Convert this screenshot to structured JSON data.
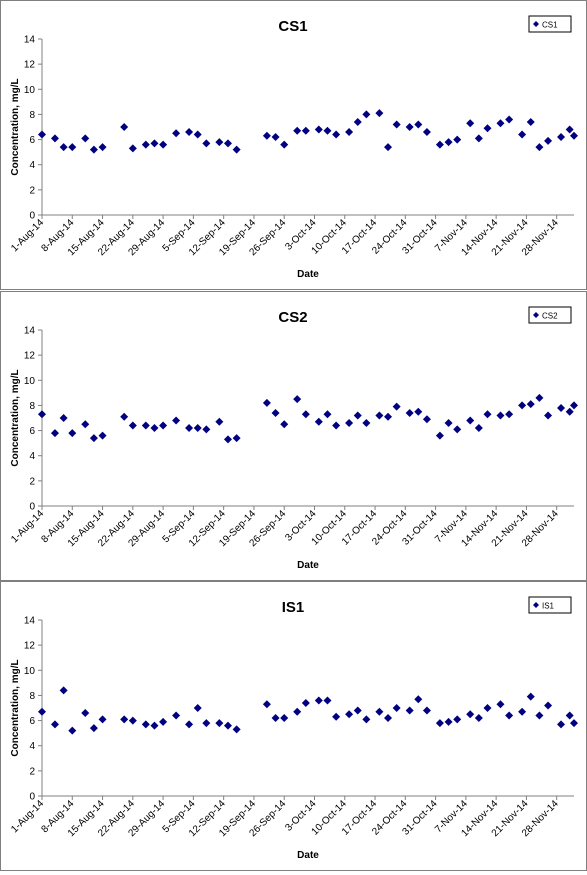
{
  "chart_data": [
    {
      "type": "scatter",
      "title": "CS1",
      "xlabel": "Date",
      "ylabel": "Concentration, mg/L",
      "ylim": [
        0,
        14
      ],
      "yticks": [
        0,
        2,
        4,
        6,
        8,
        10,
        12,
        14
      ],
      "xlim": [
        "1-Aug-14",
        "2-Dec-14"
      ],
      "xtick_labels": [
        "1-Aug-14",
        "8-Aug-14",
        "15-Aug-14",
        "22-Aug-14",
        "29-Aug-14",
        "5-Sep-14",
        "12-Sep-14",
        "19-Sep-14",
        "26-Sep-14",
        "3-Oct-14",
        "10-Oct-14",
        "17-Oct-14",
        "24-Oct-14",
        "31-Oct-14",
        "7-Nov-14",
        "14-Nov-14",
        "21-Nov-14",
        "28-Nov-14"
      ],
      "legend_position": "top-right",
      "grid": false,
      "marker_color": "#000080",
      "series": [
        {
          "name": "CS1",
          "points": [
            {
              "x": "1-Aug-14",
              "y": 6.4
            },
            {
              "x": "4-Aug-14",
              "y": 6.1
            },
            {
              "x": "6-Aug-14",
              "y": 5.4
            },
            {
              "x": "8-Aug-14",
              "y": 5.4
            },
            {
              "x": "11-Aug-14",
              "y": 6.1
            },
            {
              "x": "13-Aug-14",
              "y": 5.2
            },
            {
              "x": "15-Aug-14",
              "y": 5.4
            },
            {
              "x": "20-Aug-14",
              "y": 7.0
            },
            {
              "x": "22-Aug-14",
              "y": 5.3
            },
            {
              "x": "25-Aug-14",
              "y": 5.6
            },
            {
              "x": "27-Aug-14",
              "y": 5.7
            },
            {
              "x": "29-Aug-14",
              "y": 5.6
            },
            {
              "x": "1-Sep-14",
              "y": 6.5
            },
            {
              "x": "4-Sep-14",
              "y": 6.6
            },
            {
              "x": "6-Sep-14",
              "y": 6.4
            },
            {
              "x": "8-Sep-14",
              "y": 5.7
            },
            {
              "x": "11-Sep-14",
              "y": 5.8
            },
            {
              "x": "13-Sep-14",
              "y": 5.7
            },
            {
              "x": "15-Sep-14",
              "y": 5.2
            },
            {
              "x": "22-Sep-14",
              "y": 6.3
            },
            {
              "x": "24-Sep-14",
              "y": 6.2
            },
            {
              "x": "26-Sep-14",
              "y": 5.6
            },
            {
              "x": "29-Sep-14",
              "y": 6.7
            },
            {
              "x": "1-Oct-14",
              "y": 6.7
            },
            {
              "x": "4-Oct-14",
              "y": 6.8
            },
            {
              "x": "6-Oct-14",
              "y": 6.7
            },
            {
              "x": "8-Oct-14",
              "y": 6.4
            },
            {
              "x": "11-Oct-14",
              "y": 6.6
            },
            {
              "x": "13-Oct-14",
              "y": 7.4
            },
            {
              "x": "15-Oct-14",
              "y": 8.0
            },
            {
              "x": "18-Oct-14",
              "y": 8.1
            },
            {
              "x": "20-Oct-14",
              "y": 5.4
            },
            {
              "x": "22-Oct-14",
              "y": 7.2
            },
            {
              "x": "25-Oct-14",
              "y": 7.0
            },
            {
              "x": "27-Oct-14",
              "y": 7.2
            },
            {
              "x": "29-Oct-14",
              "y": 6.6
            },
            {
              "x": "1-Nov-14",
              "y": 5.6
            },
            {
              "x": "3-Nov-14",
              "y": 5.8
            },
            {
              "x": "5-Nov-14",
              "y": 6.0
            },
            {
              "x": "8-Nov-14",
              "y": 7.3
            },
            {
              "x": "10-Nov-14",
              "y": 6.1
            },
            {
              "x": "12-Nov-14",
              "y": 6.9
            },
            {
              "x": "15-Nov-14",
              "y": 7.3
            },
            {
              "x": "17-Nov-14",
              "y": 7.6
            },
            {
              "x": "20-Nov-14",
              "y": 6.4
            },
            {
              "x": "22-Nov-14",
              "y": 7.4
            },
            {
              "x": "24-Nov-14",
              "y": 5.4
            },
            {
              "x": "26-Nov-14",
              "y": 5.9
            },
            {
              "x": "29-Nov-14",
              "y": 6.2
            },
            {
              "x": "1-Dec-14",
              "y": 6.8
            },
            {
              "x": "2-Dec-14",
              "y": 6.3
            }
          ]
        }
      ]
    },
    {
      "type": "scatter",
      "title": "CS2",
      "xlabel": "Date",
      "ylabel": "Concentration, mg/L",
      "ylim": [
        0,
        14
      ],
      "yticks": [
        0,
        2,
        4,
        6,
        8,
        10,
        12,
        14
      ],
      "xlim": [
        "1-Aug-14",
        "2-Dec-14"
      ],
      "xtick_labels": [
        "1-Aug-14",
        "8-Aug-14",
        "15-Aug-14",
        "22-Aug-14",
        "29-Aug-14",
        "5-Sep-14",
        "12-Sep-14",
        "19-Sep-14",
        "26-Sep-14",
        "3-Oct-14",
        "10-Oct-14",
        "17-Oct-14",
        "24-Oct-14",
        "31-Oct-14",
        "7-Nov-14",
        "14-Nov-14",
        "21-Nov-14",
        "28-Nov-14"
      ],
      "legend_position": "top-right",
      "grid": false,
      "marker_color": "#000080",
      "series": [
        {
          "name": "CS2",
          "points": [
            {
              "x": "1-Aug-14",
              "y": 7.3
            },
            {
              "x": "4-Aug-14",
              "y": 5.8
            },
            {
              "x": "6-Aug-14",
              "y": 7.0
            },
            {
              "x": "8-Aug-14",
              "y": 5.8
            },
            {
              "x": "11-Aug-14",
              "y": 6.5
            },
            {
              "x": "13-Aug-14",
              "y": 5.4
            },
            {
              "x": "15-Aug-14",
              "y": 5.6
            },
            {
              "x": "20-Aug-14",
              "y": 7.1
            },
            {
              "x": "22-Aug-14",
              "y": 6.4
            },
            {
              "x": "25-Aug-14",
              "y": 6.4
            },
            {
              "x": "27-Aug-14",
              "y": 6.2
            },
            {
              "x": "29-Aug-14",
              "y": 6.4
            },
            {
              "x": "1-Sep-14",
              "y": 6.8
            },
            {
              "x": "4-Sep-14",
              "y": 6.2
            },
            {
              "x": "6-Sep-14",
              "y": 6.2
            },
            {
              "x": "8-Sep-14",
              "y": 6.1
            },
            {
              "x": "11-Sep-14",
              "y": 6.7
            },
            {
              "x": "13-Sep-14",
              "y": 5.3
            },
            {
              "x": "15-Sep-14",
              "y": 5.4
            },
            {
              "x": "22-Sep-14",
              "y": 8.2
            },
            {
              "x": "24-Sep-14",
              "y": 7.4
            },
            {
              "x": "26-Sep-14",
              "y": 6.5
            },
            {
              "x": "29-Sep-14",
              "y": 8.5
            },
            {
              "x": "1-Oct-14",
              "y": 7.3
            },
            {
              "x": "4-Oct-14",
              "y": 6.7
            },
            {
              "x": "6-Oct-14",
              "y": 7.3
            },
            {
              "x": "8-Oct-14",
              "y": 6.4
            },
            {
              "x": "11-Oct-14",
              "y": 6.6
            },
            {
              "x": "13-Oct-14",
              "y": 7.2
            },
            {
              "x": "15-Oct-14",
              "y": 6.6
            },
            {
              "x": "18-Oct-14",
              "y": 7.2
            },
            {
              "x": "20-Oct-14",
              "y": 7.1
            },
            {
              "x": "22-Oct-14",
              "y": 7.9
            },
            {
              "x": "25-Oct-14",
              "y": 7.4
            },
            {
              "x": "27-Oct-14",
              "y": 7.5
            },
            {
              "x": "29-Oct-14",
              "y": 6.9
            },
            {
              "x": "1-Nov-14",
              "y": 5.6
            },
            {
              "x": "3-Nov-14",
              "y": 6.6
            },
            {
              "x": "5-Nov-14",
              "y": 6.1
            },
            {
              "x": "8-Nov-14",
              "y": 6.8
            },
            {
              "x": "10-Nov-14",
              "y": 6.2
            },
            {
              "x": "12-Nov-14",
              "y": 7.3
            },
            {
              "x": "15-Nov-14",
              "y": 7.2
            },
            {
              "x": "17-Nov-14",
              "y": 7.3
            },
            {
              "x": "20-Nov-14",
              "y": 8.0
            },
            {
              "x": "22-Nov-14",
              "y": 8.1
            },
            {
              "x": "24-Nov-14",
              "y": 8.6
            },
            {
              "x": "26-Nov-14",
              "y": 7.2
            },
            {
              "x": "29-Nov-14",
              "y": 7.8
            },
            {
              "x": "1-Dec-14",
              "y": 7.5
            },
            {
              "x": "2-Dec-14",
              "y": 8.0
            }
          ]
        }
      ]
    },
    {
      "type": "scatter",
      "title": "IS1",
      "xlabel": "Date",
      "ylabel": "Concentration, mg/L",
      "ylim": [
        0,
        14
      ],
      "yticks": [
        0,
        2,
        4,
        6,
        8,
        10,
        12,
        14
      ],
      "xlim": [
        "1-Aug-14",
        "2-Dec-14"
      ],
      "xtick_labels": [
        "1-Aug-14",
        "8-Aug-14",
        "15-Aug-14",
        "22-Aug-14",
        "29-Aug-14",
        "5-Sep-14",
        "12-Sep-14",
        "19-Sep-14",
        "26-Sep-14",
        "3-Oct-14",
        "10-Oct-14",
        "17-Oct-14",
        "24-Oct-14",
        "31-Oct-14",
        "7-Nov-14",
        "14-Nov-14",
        "21-Nov-14",
        "28-Nov-14"
      ],
      "legend_position": "top-right",
      "grid": false,
      "marker_color": "#000080",
      "series": [
        {
          "name": "IS1",
          "points": [
            {
              "x": "1-Aug-14",
              "y": 6.7
            },
            {
              "x": "4-Aug-14",
              "y": 5.7
            },
            {
              "x": "6-Aug-14",
              "y": 8.4
            },
            {
              "x": "8-Aug-14",
              "y": 5.2
            },
            {
              "x": "11-Aug-14",
              "y": 6.6
            },
            {
              "x": "13-Aug-14",
              "y": 5.4
            },
            {
              "x": "15-Aug-14",
              "y": 6.1
            },
            {
              "x": "20-Aug-14",
              "y": 6.1
            },
            {
              "x": "22-Aug-14",
              "y": 6.0
            },
            {
              "x": "25-Aug-14",
              "y": 5.7
            },
            {
              "x": "27-Aug-14",
              "y": 5.6
            },
            {
              "x": "29-Aug-14",
              "y": 5.9
            },
            {
              "x": "1-Sep-14",
              "y": 6.4
            },
            {
              "x": "4-Sep-14",
              "y": 5.7
            },
            {
              "x": "6-Sep-14",
              "y": 7.0
            },
            {
              "x": "8-Sep-14",
              "y": 5.8
            },
            {
              "x": "11-Sep-14",
              "y": 5.8
            },
            {
              "x": "13-Sep-14",
              "y": 5.6
            },
            {
              "x": "15-Sep-14",
              "y": 5.3
            },
            {
              "x": "22-Sep-14",
              "y": 7.3
            },
            {
              "x": "24-Sep-14",
              "y": 6.2
            },
            {
              "x": "26-Sep-14",
              "y": 6.2
            },
            {
              "x": "29-Sep-14",
              "y": 6.7
            },
            {
              "x": "1-Oct-14",
              "y": 7.4
            },
            {
              "x": "4-Oct-14",
              "y": 7.6
            },
            {
              "x": "6-Oct-14",
              "y": 7.6
            },
            {
              "x": "8-Oct-14",
              "y": 6.3
            },
            {
              "x": "11-Oct-14",
              "y": 6.5
            },
            {
              "x": "13-Oct-14",
              "y": 6.8
            },
            {
              "x": "15-Oct-14",
              "y": 6.1
            },
            {
              "x": "18-Oct-14",
              "y": 6.7
            },
            {
              "x": "20-Oct-14",
              "y": 6.2
            },
            {
              "x": "22-Oct-14",
              "y": 7.0
            },
            {
              "x": "25-Oct-14",
              "y": 6.8
            },
            {
              "x": "27-Oct-14",
              "y": 7.7
            },
            {
              "x": "29-Oct-14",
              "y": 6.8
            },
            {
              "x": "1-Nov-14",
              "y": 5.8
            },
            {
              "x": "3-Nov-14",
              "y": 5.9
            },
            {
              "x": "5-Nov-14",
              "y": 6.1
            },
            {
              "x": "8-Nov-14",
              "y": 6.5
            },
            {
              "x": "10-Nov-14",
              "y": 6.2
            },
            {
              "x": "12-Nov-14",
              "y": 7.0
            },
            {
              "x": "15-Nov-14",
              "y": 7.3
            },
            {
              "x": "17-Nov-14",
              "y": 6.4
            },
            {
              "x": "20-Nov-14",
              "y": 6.7
            },
            {
              "x": "22-Nov-14",
              "y": 7.9
            },
            {
              "x": "24-Nov-14",
              "y": 6.4
            },
            {
              "x": "26-Nov-14",
              "y": 7.2
            },
            {
              "x": "29-Nov-14",
              "y": 5.7
            },
            {
              "x": "1-Dec-14",
              "y": 6.4
            },
            {
              "x": "2-Dec-14",
              "y": 5.8
            }
          ]
        }
      ]
    }
  ]
}
